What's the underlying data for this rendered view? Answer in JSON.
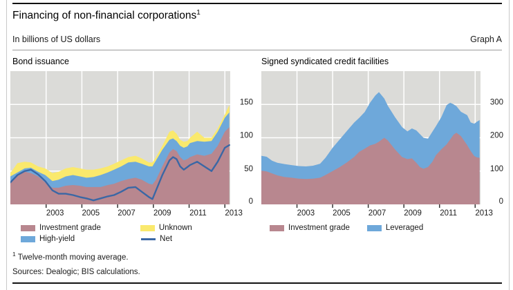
{
  "header": {
    "title": "Financing of non-financial corporations",
    "title_footnote_marker": "1",
    "subtitle": "In billions of US dollars",
    "graph_label": "Graph A"
  },
  "footnotes": {
    "marker": "1",
    "text": "Twelve-month moving average.",
    "sources": "Sources: Dealogic; BIS calculations."
  },
  "colors": {
    "investment_grade": "#b8878f",
    "high_yield": "#6ea8da",
    "unknown": "#fae96d",
    "leveraged": "#6ea8da",
    "net_line": "#3a67a5",
    "plot_bg": "#dbdbd8",
    "grid": "#ffffff",
    "tick": "#333333"
  },
  "chart_data": [
    {
      "type": "area",
      "title": "Bond issuance",
      "note": "stacked areas; series values are cumulative stack tops in billions of USD; Net is a line",
      "xlim": [
        2001.0,
        2013.3
      ],
      "ylim": [
        0,
        200
      ],
      "xticks": [
        2003,
        2005,
        2007,
        2009,
        2011,
        2013
      ],
      "yticks": [
        0,
        50,
        100,
        150
      ],
      "grid": true,
      "legend_position": "below",
      "x": [
        2001.0,
        2001.4,
        2001.8,
        2002.15,
        2002.55,
        2002.95,
        2003.35,
        2003.7,
        2004.1,
        2004.5,
        2004.9,
        2005.25,
        2005.65,
        2006.05,
        2006.45,
        2006.8,
        2007.2,
        2007.6,
        2008.0,
        2008.35,
        2008.75,
        2008.95,
        2009.15,
        2009.5,
        2009.9,
        2010.1,
        2010.3,
        2010.5,
        2010.7,
        2010.9,
        2011.05,
        2011.45,
        2011.85,
        2012.25,
        2012.6,
        2013.0,
        2013.25
      ],
      "series": [
        {
          "name": "Investment grade",
          "role": "area",
          "color_key": "investment_grade",
          "values": [
            35,
            44,
            49,
            47,
            42,
            33,
            25,
            25,
            28,
            29,
            28,
            26,
            26,
            26,
            29,
            31,
            35,
            38,
            40,
            37,
            31,
            30,
            37,
            57,
            78,
            83,
            80,
            71,
            66,
            68,
            71,
            75,
            73,
            76,
            88,
            109,
            116
          ]
        },
        {
          "name": "High-yield",
          "role": "area",
          "color_key": "high_yield",
          "values": [
            42,
            48,
            54,
            55,
            49,
            44,
            35,
            37,
            42,
            44,
            42,
            40,
            41,
            44,
            48,
            52,
            57,
            63,
            64,
            61,
            57,
            57,
            66,
            82,
            97,
            99,
            95,
            88,
            85,
            87,
            92,
            95,
            94,
            95,
            109,
            130,
            138
          ]
        },
        {
          "name": "Unknown",
          "role": "area",
          "color_key": "unknown",
          "values": [
            47,
            62,
            64,
            63,
            57,
            54,
            47,
            49,
            54,
            56,
            54,
            52,
            52,
            54,
            57,
            61,
            66,
            71,
            73,
            69,
            63,
            63,
            71,
            88,
            109,
            111,
            106,
            97,
            94,
            95,
            100,
            109,
            100,
            100,
            114,
            135,
            149
          ]
        },
        {
          "name": "Net",
          "role": "line",
          "color_key": "net_line",
          "values": [
            33,
            44,
            50,
            52,
            45,
            35,
            21,
            16,
            16,
            14,
            11,
            9,
            6,
            9,
            12,
            14,
            19,
            25,
            26,
            19,
            11,
            8,
            21,
            44,
            66,
            71,
            68,
            57,
            52,
            56,
            59,
            64,
            57,
            50,
            64,
            85,
            89
          ]
        }
      ]
    },
    {
      "type": "area",
      "title": "Signed syndicated credit facilities",
      "note": "stacked areas; series values are cumulative stack tops in billions of USD",
      "xlim": [
        2001.0,
        2013.3
      ],
      "ylim": [
        0,
        400
      ],
      "xticks": [
        2003,
        2005,
        2007,
        2009,
        2011,
        2013
      ],
      "yticks": [
        0,
        100,
        200,
        300
      ],
      "grid": true,
      "legend_position": "below",
      "x": [
        2001.0,
        2001.3,
        2001.6,
        2001.9,
        2002.3,
        2002.7,
        2003.1,
        2003.5,
        2003.9,
        2004.3,
        2004.6,
        2005.0,
        2005.4,
        2005.8,
        2006.2,
        2006.5,
        2006.8,
        2007.1,
        2007.4,
        2007.6,
        2007.9,
        2008.1,
        2008.5,
        2008.9,
        2009.2,
        2009.45,
        2009.7,
        2009.9,
        2010.1,
        2010.35,
        2010.6,
        2010.8,
        2011.1,
        2011.4,
        2011.6,
        2011.8,
        2011.95,
        2012.2,
        2012.55,
        2012.75,
        2012.95,
        2013.1,
        2013.25
      ],
      "series": [
        {
          "name": "Investment grade",
          "role": "area",
          "color_key": "investment_grade",
          "values": [
            101,
            99,
            93,
            87,
            82,
            80,
            77,
            76,
            77,
            80,
            88,
            100,
            112,
            126,
            142,
            158,
            167,
            177,
            182,
            188,
            200,
            192,
            165,
            142,
            136,
            138,
            125,
            112,
            107,
            112,
            128,
            148,
            165,
            180,
            195,
            210,
            215,
            205,
            178,
            160,
            145,
            141,
            140
          ]
        },
        {
          "name": "Leveraged",
          "role": "area",
          "color_key": "leveraged",
          "values": [
            146,
            143,
            131,
            125,
            121,
            118,
            115,
            114,
            116,
            122,
            140,
            170,
            195,
            220,
            245,
            260,
            277,
            305,
            327,
            337,
            318,
            296,
            262,
            232,
            219,
            228,
            222,
            211,
            200,
            197,
            218,
            235,
            262,
            298,
            305,
            300,
            295,
            278,
            268,
            246,
            242,
            248,
            253
          ]
        }
      ]
    }
  ]
}
